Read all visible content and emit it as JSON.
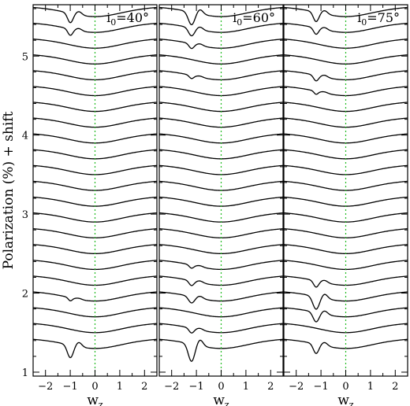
{
  "chart_data": {
    "type": "line",
    "ylabel": "Polarization (%) + shift",
    "xlabel_main": "w",
    "xlabel_sub": "z",
    "xlim": [
      -2.5,
      2.5
    ],
    "ylim": [
      0.95,
      5.65
    ],
    "x_ticks": [
      -2,
      -1,
      0,
      1,
      2
    ],
    "x_tick_labels": [
      "−2",
      "−1",
      "0",
      "1",
      "2"
    ],
    "y_ticks": [
      1,
      2,
      3,
      4,
      5
    ],
    "y_tick_labels": [
      "1",
      "2",
      "3",
      "4",
      "5"
    ],
    "reference_line": {
      "x": 0,
      "style": "dotted",
      "color": "#22bb22"
    },
    "curve_count": 22,
    "curve_offsets": [
      1.4,
      1.6,
      1.8,
      2.0,
      2.2,
      2.4,
      2.6,
      2.8,
      3.0,
      3.2,
      3.4,
      3.6,
      3.8,
      4.0,
      4.2,
      4.4,
      4.6,
      4.8,
      5.0,
      5.2,
      5.4,
      5.6
    ],
    "panels": [
      {
        "name": "i0=40",
        "label_main": "i",
        "label_sub": "0",
        "label_rest": "=40°",
        "dip_center": -1.0,
        "strong_dips": [
          {
            "curve": 0,
            "depth": 0.16,
            "width": 0.12
          },
          {
            "curve": 3,
            "depth": 0.04,
            "width": 0.08
          },
          {
            "curve": 20,
            "depth": 0.08,
            "width": 0.1
          },
          {
            "curve": 21,
            "depth": 0.12,
            "width": 0.11
          }
        ]
      },
      {
        "name": "i0=60",
        "label_main": "i",
        "label_sub": "0",
        "label_rest": "=60°",
        "dip_center": -1.2,
        "strong_dips": [
          {
            "curve": 0,
            "depth": 0.22,
            "width": 0.13
          },
          {
            "curve": 1,
            "depth": 0.06,
            "width": 0.1
          },
          {
            "curve": 3,
            "depth": 0.08,
            "width": 0.12
          },
          {
            "curve": 4,
            "depth": 0.06,
            "width": 0.1
          },
          {
            "curve": 5,
            "depth": 0.04,
            "width": 0.09
          },
          {
            "curve": 17,
            "depth": 0.04,
            "width": 0.09
          },
          {
            "curve": 19,
            "depth": 0.06,
            "width": 0.1
          },
          {
            "curve": 20,
            "depth": 0.1,
            "width": 0.12
          },
          {
            "curve": 21,
            "depth": 0.16,
            "width": 0.13
          }
        ]
      },
      {
        "name": "i0=75",
        "label_main": "i",
        "label_sub": "0",
        "label_rest": "=75°",
        "dip_center": -1.2,
        "strong_dips": [
          {
            "curve": 0,
            "depth": 0.12,
            "width": 0.11
          },
          {
            "curve": 2,
            "depth": 0.12,
            "width": 0.12
          },
          {
            "curve": 3,
            "depth": 0.16,
            "width": 0.13
          },
          {
            "curve": 4,
            "depth": 0.08,
            "width": 0.1
          },
          {
            "curve": 16,
            "depth": 0.04,
            "width": 0.08
          },
          {
            "curve": 17,
            "depth": 0.07,
            "width": 0.1
          },
          {
            "curve": 20,
            "depth": 0.08,
            "width": 0.1
          },
          {
            "curve": 21,
            "depth": 0.12,
            "width": 0.11
          }
        ]
      }
    ],
    "curve_shape": {
      "broad_dip_depth": 0.1,
      "broad_dip_sigma": 1.0,
      "end_rise": 0.02
    }
  }
}
